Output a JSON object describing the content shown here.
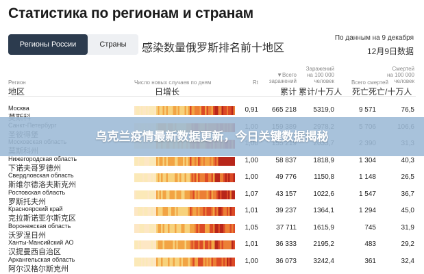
{
  "title": "Статистика по регионам и странам",
  "tabs": [
    {
      "label": "Регионы России",
      "active": true
    },
    {
      "label": "Страны",
      "active": false
    }
  ],
  "subtitle_cn": "感染数量俄罗斯排名前十地区",
  "date_ru": "По данным на 9 декабря",
  "date_cn": "12月9日数据",
  "columns": {
    "region_ru": "Регион",
    "region_cn": "地区",
    "daily_ru": "Число новых случаев по дням",
    "daily_cn": "日增长",
    "rt": "Rt",
    "total_ru_arrow": "▼Всего",
    "total_ru_sub": "заражений",
    "total_cn": "累计",
    "per100_ru_1": "Заражений",
    "per100_ru_2": "на 100 000",
    "per100_ru_3": "человек",
    "per100_cn": "累计/十万人",
    "deaths_ru": "Всего смертей",
    "deaths_cn": "死亡",
    "dper100_ru_1": "Смертей",
    "dper100_ru_2": "на 100 000",
    "dper100_ru_3": "человек",
    "dper100_cn": "死亡/十万人"
  },
  "rows": [
    {
      "name_ru": "Москва",
      "name_cn": "莫斯科",
      "rt": "0,91",
      "total": "665 218",
      "per100k": "5319,0",
      "deaths": "9 571",
      "deaths_per100k": "76,5"
    },
    {
      "name_ru": "Санкт-Петербург",
      "name_cn": "圣彼得堡",
      "rt": "1,00",
      "total": "159 389",
      "per100k": "2978,2",
      "deaths": "5 706",
      "deaths_per100k": "106,6"
    },
    {
      "name_ru": "Московская область",
      "name_cn": "莫斯科州",
      "rt": "1,00",
      "total": "155 219",
      "per100k": "2033,7",
      "deaths": "2 390",
      "deaths_per100k": "31,3"
    },
    {
      "name_ru": "Нижегородская область",
      "name_cn": "下诺夫哥罗德州",
      "rt": "1,00",
      "total": "58 837",
      "per100k": "1818,9",
      "deaths": "1 304",
      "deaths_per100k": "40,3"
    },
    {
      "name_ru": "Свердловская область",
      "name_cn": "斯维尔德洛夫斯克州",
      "rt": "1,00",
      "total": "49 776",
      "per100k": "1150,8",
      "deaths": "1 148",
      "deaths_per100k": "26,5"
    },
    {
      "name_ru": "Ростовская область",
      "name_cn": "罗斯托夫州",
      "rt": "1,07",
      "total": "43 157",
      "per100k": "1022,6",
      "deaths": "1 547",
      "deaths_per100k": "36,7"
    },
    {
      "name_ru": "Красноярский край",
      "name_cn": "克拉斯诺亚尔斯克区",
      "rt": "1,01",
      "total": "39 237",
      "per100k": "1364,1",
      "deaths": "1 294",
      "deaths_per100k": "45,0"
    },
    {
      "name_ru": "Воронежская область",
      "name_cn": "沃罗涅日州",
      "rt": "1,05",
      "total": "37 711",
      "per100k": "1615,9",
      "deaths": "745",
      "deaths_per100k": "31,9"
    },
    {
      "name_ru": "Ханты-Мансийский АО",
      "name_cn": "汉提曼西自治区",
      "rt": "1,01",
      "total": "36 333",
      "per100k": "2195,2",
      "deaths": "483",
      "deaths_per100k": "29,2"
    },
    {
      "name_ru": "Архангельская область",
      "name_cn": "阿尔汉格尔斯克州",
      "rt": "1,00",
      "total": "36 073",
      "per100k": "3242,4",
      "deaths": "361",
      "deaths_per100k": "32,4"
    }
  ],
  "banner": "乌克兰疫情最新数据更新，今日关键数据揭秘",
  "colors": {
    "tab_active": "#2c3b4e",
    "heat_low": "#fbe3a3",
    "heat_mid": "#f2a444",
    "heat_high": "#dc4a26",
    "heat_peak": "#b8261a",
    "banner": "#9cbad6"
  }
}
